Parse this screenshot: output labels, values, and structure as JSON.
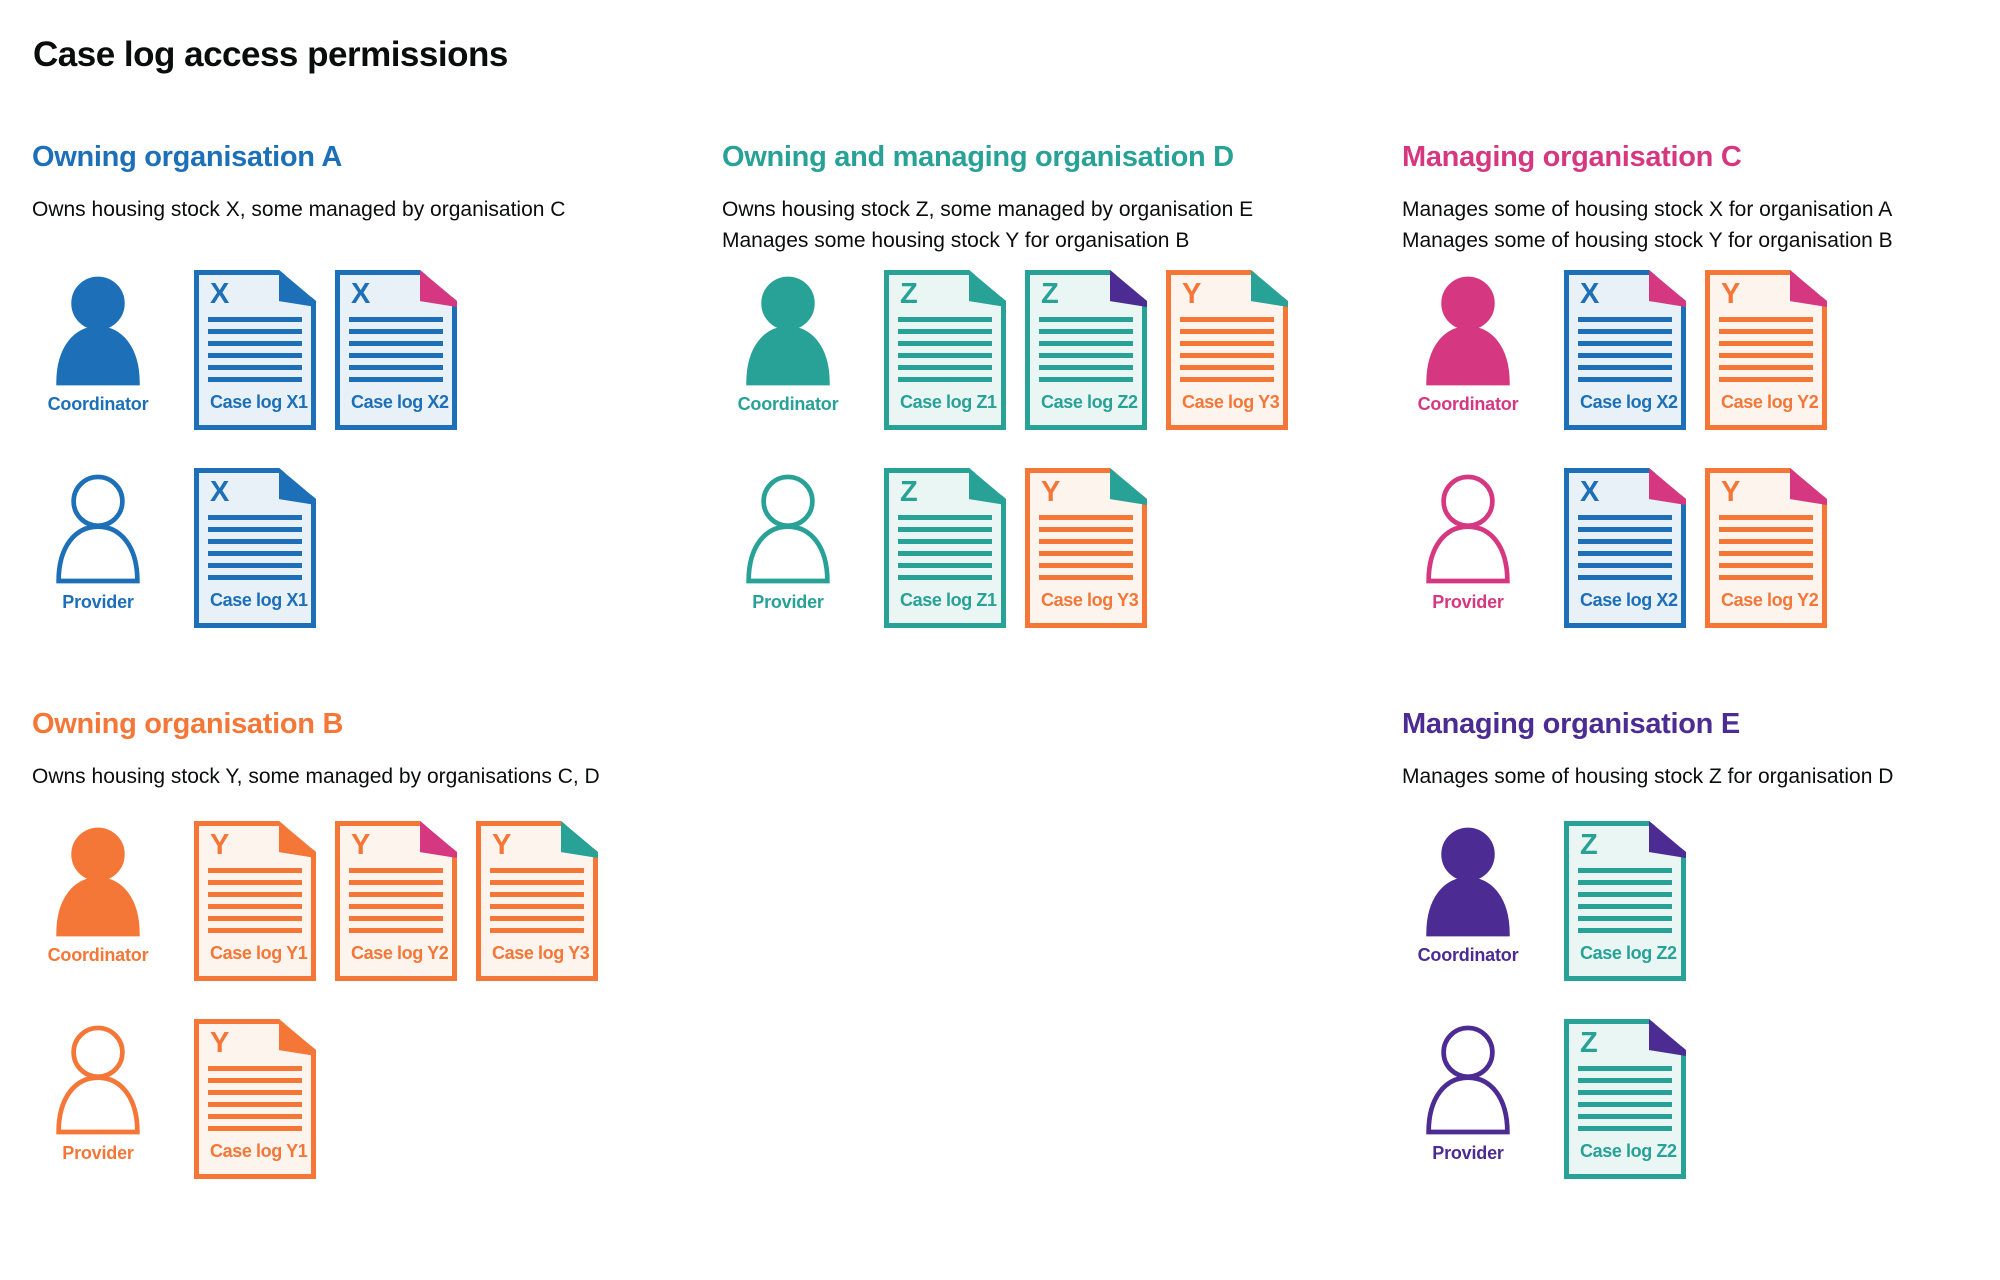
{
  "title": "Case log access permissions",
  "palette": {
    "blue": "#1d70b8",
    "teal": "#28a197",
    "orange": "#f47738",
    "pink": "#d53880",
    "purple": "#4c2c92",
    "text": "#0b0c0c",
    "blue_tint": "#e8f1f8",
    "teal_tint": "#eaf6f4",
    "orange_tint": "#fdf4ee"
  },
  "organisations": [
    {
      "id": "a",
      "name": "Owning organisation A",
      "color": "blue",
      "subtitle": [
        "Owns housing stock X, some managed by organisation C"
      ],
      "rows": [
        {
          "role": "Coordinator",
          "docs": [
            {
              "letter": "X",
              "label": "Case log X1",
              "color": "blue",
              "fold": "blue"
            },
            {
              "letter": "X",
              "label": "Case log X2",
              "color": "blue",
              "fold": "pink"
            }
          ]
        },
        {
          "role": "Provider",
          "docs": [
            {
              "letter": "X",
              "label": "Case log X1",
              "color": "blue",
              "fold": "blue"
            }
          ]
        }
      ]
    },
    {
      "id": "d",
      "name": "Owning and managing organisation D",
      "color": "teal",
      "subtitle": [
        "Owns housing stock Z, some managed by organisation E",
        "Manages some housing stock Y for organisation B"
      ],
      "rows": [
        {
          "role": "Coordinator",
          "docs": [
            {
              "letter": "Z",
              "label": "Case log Z1",
              "color": "teal",
              "fold": "teal"
            },
            {
              "letter": "Z",
              "label": "Case log Z2",
              "color": "teal",
              "fold": "purple"
            },
            {
              "letter": "Y",
              "label": "Case log Y3",
              "color": "orange",
              "fold": "teal"
            }
          ]
        },
        {
          "role": "Provider",
          "docs": [
            {
              "letter": "Z",
              "label": "Case log Z1",
              "color": "teal",
              "fold": "teal"
            },
            {
              "letter": "Y",
              "label": "Case log Y3",
              "color": "orange",
              "fold": "teal"
            }
          ]
        }
      ]
    },
    {
      "id": "c",
      "name": "Managing organisation C",
      "color": "pink",
      "subtitle": [
        "Manages some of housing stock X for organisation A",
        "Manages some of housing stock Y for organisation B"
      ],
      "rows": [
        {
          "role": "Coordinator",
          "docs": [
            {
              "letter": "X",
              "label": "Case log X2",
              "color": "blue",
              "fold": "pink"
            },
            {
              "letter": "Y",
              "label": "Case log Y2",
              "color": "orange",
              "fold": "pink"
            }
          ]
        },
        {
          "role": "Provider",
          "docs": [
            {
              "letter": "X",
              "label": "Case log X2",
              "color": "blue",
              "fold": "pink"
            },
            {
              "letter": "Y",
              "label": "Case log Y2",
              "color": "orange",
              "fold": "pink"
            }
          ]
        }
      ]
    },
    {
      "id": "b",
      "name": "Owning organisation B",
      "color": "orange",
      "subtitle": [
        "Owns housing stock Y, some managed by organisations C, D"
      ],
      "rows": [
        {
          "role": "Coordinator",
          "docs": [
            {
              "letter": "Y",
              "label": "Case log Y1",
              "color": "orange",
              "fold": "orange"
            },
            {
              "letter": "Y",
              "label": "Case log Y2",
              "color": "orange",
              "fold": "pink"
            },
            {
              "letter": "Y",
              "label": "Case log Y3",
              "color": "orange",
              "fold": "teal"
            }
          ]
        },
        {
          "role": "Provider",
          "docs": [
            {
              "letter": "Y",
              "label": "Case log Y1",
              "color": "orange",
              "fold": "orange"
            }
          ]
        }
      ]
    },
    {
      "id": "e",
      "name": "Managing organisation E",
      "color": "purple",
      "subtitle": [
        "Manages some of housing stock Z for organisation D"
      ],
      "rows": [
        {
          "role": "Coordinator",
          "docs": [
            {
              "letter": "Z",
              "label": "Case log Z2",
              "color": "teal",
              "fold": "purple"
            }
          ]
        },
        {
          "role": "Provider",
          "docs": [
            {
              "letter": "Z",
              "label": "Case log Z2",
              "color": "teal",
              "fold": "purple"
            }
          ]
        }
      ]
    }
  ]
}
